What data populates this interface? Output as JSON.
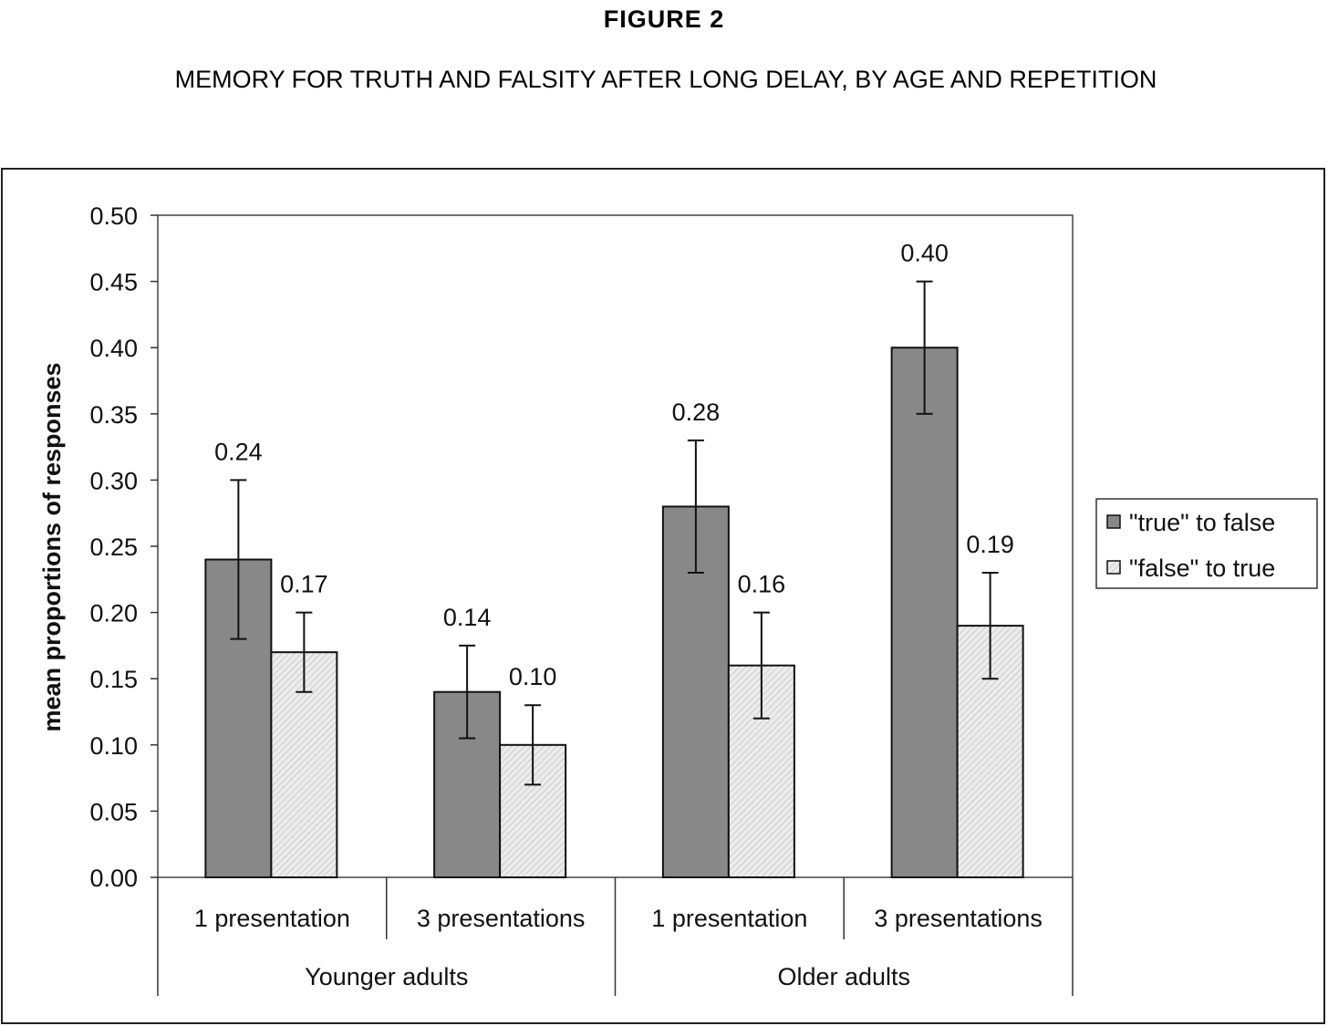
{
  "figure_label": "FIGURE  2",
  "chart_data": {
    "type": "bar",
    "title": "MEMORY FOR TRUTH AND FALSITY AFTER LONG DELAY, BY AGE AND REPETITION",
    "xlabel": "",
    "ylabel": "mean proportions of responses",
    "ylim": [
      0,
      0.5
    ],
    "yticks": [
      "0.00",
      "0.05",
      "0.10",
      "0.15",
      "0.20",
      "0.25",
      "0.30",
      "0.35",
      "0.40",
      "0.45",
      "0.50"
    ],
    "grid": false,
    "legend_position": "right",
    "categories": [
      "1 presentation",
      "3 presentations",
      "1 presentation",
      "3 presentations"
    ],
    "groups": [
      {
        "label": "Younger adults",
        "span": 2
      },
      {
        "label": "Older adults",
        "span": 2
      }
    ],
    "series": [
      {
        "name": "\"true\" to false",
        "color": "#888888",
        "values": [
          0.24,
          0.14,
          0.28,
          0.4
        ],
        "labels": [
          "0.24",
          "0.14",
          "0.28",
          "0.40"
        ],
        "error_low": [
          0.18,
          0.105,
          0.23,
          0.35
        ],
        "error_high": [
          0.3,
          0.175,
          0.33,
          0.45
        ]
      },
      {
        "name": "\"false\" to true",
        "color": "#e6e6e6",
        "values": [
          0.17,
          0.1,
          0.16,
          0.19
        ],
        "labels": [
          "0.17",
          "0.10",
          "0.16",
          "0.19"
        ],
        "error_low": [
          0.14,
          0.07,
          0.12,
          0.15
        ],
        "error_high": [
          0.2,
          0.13,
          0.2,
          0.23
        ]
      }
    ]
  }
}
